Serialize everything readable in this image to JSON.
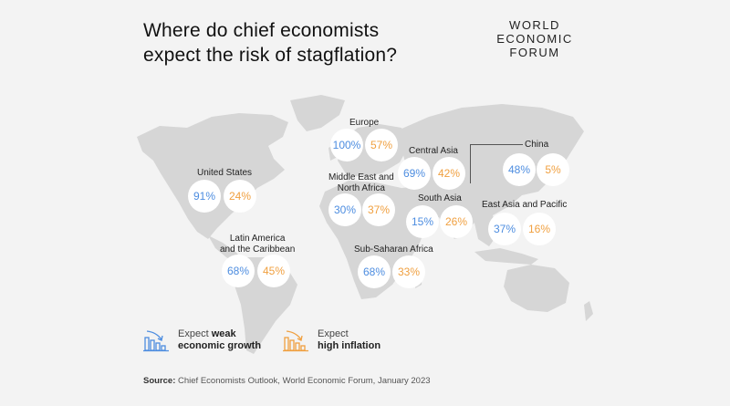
{
  "title_line1": "Where do chief economists",
  "title_line2": "expect the risk of stagflation?",
  "logo": {
    "line1": "WORLD",
    "line2": "ECONOMIC",
    "line3": "FORUM"
  },
  "colors": {
    "weak": "#4d8de0",
    "inflation": "#f0a040",
    "map": "#d6d6d6",
    "background": "#f3f3f3"
  },
  "chart_data": {
    "type": "table",
    "series": [
      {
        "name": "Expect weak economic growth",
        "color": "#4d8de0"
      },
      {
        "name": "Expect high inflation",
        "color": "#f0a040"
      }
    ],
    "regions": [
      {
        "name": "United States",
        "weak": "91%",
        "inflation": "24%"
      },
      {
        "name": "Latin America and the Caribbean",
        "weak": "68%",
        "inflation": "45%"
      },
      {
        "name": "Europe",
        "weak": "100%",
        "inflation": "57%"
      },
      {
        "name": "Middle East and North Africa",
        "weak": "30%",
        "inflation": "37%"
      },
      {
        "name": "Sub-Saharan Africa",
        "weak": "68%",
        "inflation": "33%"
      },
      {
        "name": "Central Asia",
        "weak": "69%",
        "inflation": "42%"
      },
      {
        "name": "South Asia",
        "weak": "15%",
        "inflation": "26%"
      },
      {
        "name": "China",
        "weak": "48%",
        "inflation": "5%"
      },
      {
        "name": "East Asia and Pacific",
        "weak": "37%",
        "inflation": "16%"
      }
    ]
  },
  "labels": {
    "us": "United States",
    "latam_1": "Latin America",
    "latam_2": "and the Caribbean",
    "europe": "Europe",
    "mena_1": "Middle East and",
    "mena_2": "North Africa",
    "ssa": "Sub-Saharan Africa",
    "central_asia": "Central Asia",
    "south_asia": "South Asia",
    "china": "China",
    "eap": "East Asia and Pacific"
  },
  "legend": {
    "weak_prefix": "Expect ",
    "weak_bold": "weak",
    "weak_line2": "economic growth",
    "infl_line1": "Expect",
    "infl_line2": "high inflation"
  },
  "source": {
    "bold": "Source:",
    "text": " Chief Economists Outlook, World Economic Forum, January 2023"
  }
}
